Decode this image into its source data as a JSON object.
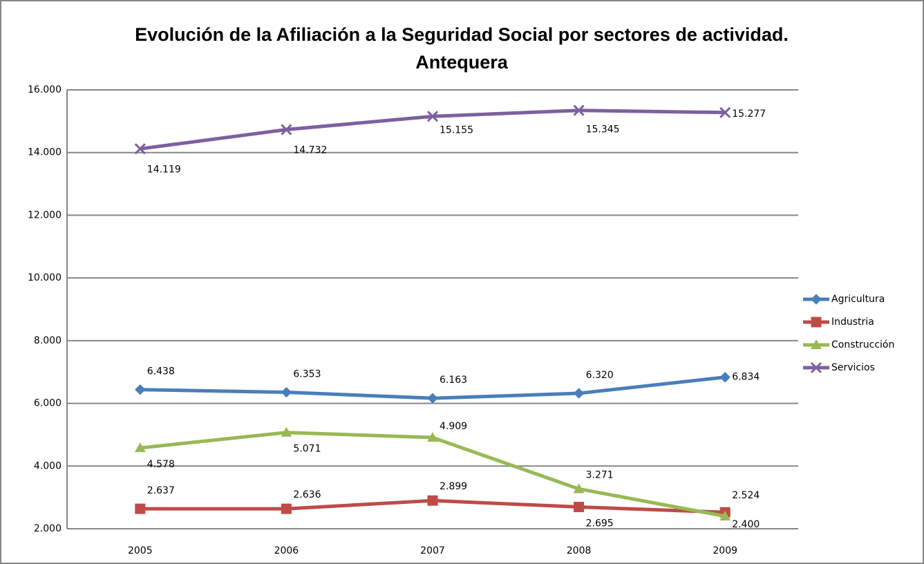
{
  "chart_data": {
    "type": "line",
    "title": [
      "Evolución de la Afiliación a la Seguridad Social por sectores de actividad.",
      "Antequera"
    ],
    "categories": [
      "2005",
      "2006",
      "2007",
      "2008",
      "2009"
    ],
    "series": [
      {
        "name": "Agricultura",
        "color": "#4a7ebb",
        "marker": "diamond",
        "values": [
          6438,
          6353,
          6163,
          6320,
          6834
        ],
        "value_labels": [
          "6.438",
          "6.353",
          "6.163",
          "6.320",
          "6.834"
        ]
      },
      {
        "name": "Industria",
        "color": "#be4b48",
        "marker": "square",
        "values": [
          2637,
          2636,
          2899,
          2695,
          2524
        ],
        "value_labels": [
          "2.637",
          "2.636",
          "2.899",
          "2.695",
          "2.524"
        ]
      },
      {
        "name": "Construcción",
        "color": "#98b954",
        "marker": "triangle",
        "values": [
          4578,
          5071,
          4909,
          3271,
          2400
        ],
        "value_labels": [
          "4.578",
          "5.071",
          "4.909",
          "3.271",
          "2.400"
        ]
      },
      {
        "name": "Servicios",
        "color": "#7d60a0",
        "marker": "x",
        "values": [
          14119,
          14732,
          15155,
          15345,
          15277
        ],
        "value_labels": [
          "14.119",
          "14.732",
          "15.155",
          "15.345",
          "15.277"
        ]
      }
    ],
    "ylim": [
      2000,
      16000
    ],
    "yticks": [
      {
        "value": 2000,
        "label": "2.000"
      },
      {
        "value": 4000,
        "label": "4.000"
      },
      {
        "value": 6000,
        "label": "6.000"
      },
      {
        "value": 8000,
        "label": "8.000"
      },
      {
        "value": 10000,
        "label": "10.000"
      },
      {
        "value": 12000,
        "label": "12.000"
      },
      {
        "value": 14000,
        "label": "14.000"
      },
      {
        "value": 16000,
        "label": "16.000"
      }
    ],
    "grid": true,
    "legend": "right"
  }
}
